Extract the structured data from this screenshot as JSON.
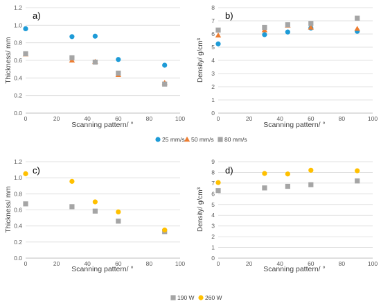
{
  "chart_data": [
    {
      "type": "scatter",
      "panel_label": "a)",
      "xlabel": "Scanning pattern/ °",
      "ylabel": "Thickness/ mm",
      "xlim": [
        0,
        100
      ],
      "ylim": [
        0,
        1.2
      ],
      "xticks": [
        "0",
        "20",
        "40",
        "60",
        "80",
        "100"
      ],
      "yticks": [
        "0.0",
        "0.2",
        "0.4",
        "0.6",
        "0.8",
        "1.0",
        "1.2"
      ],
      "grid": "horizontal",
      "series": [
        {
          "name": "25 mm/s",
          "marker": "circle",
          "color": "#1E9BD7",
          "x": [
            0,
            30,
            45,
            60,
            90
          ],
          "y": [
            0.96,
            0.87,
            0.875,
            0.61,
            0.545
          ]
        },
        {
          "name": "50 mm/s",
          "marker": "triangle",
          "color": "#ED7D31",
          "x": [
            0,
            30,
            45,
            60,
            90
          ],
          "y": [
            0.67,
            0.6,
            0.585,
            0.435,
            0.345
          ]
        },
        {
          "name": "80 mm/s",
          "marker": "square",
          "color": "#A5A5A5",
          "x": [
            0,
            30,
            45,
            60,
            90
          ],
          "y": [
            0.675,
            0.63,
            0.58,
            0.455,
            0.33
          ]
        }
      ]
    },
    {
      "type": "scatter",
      "panel_label": "b)",
      "xlabel": "Scanning pattern/ °",
      "ylabel": "Density/ g/cm³",
      "xlim": [
        0,
        100
      ],
      "ylim": [
        0,
        8
      ],
      "xticks": [
        "0",
        "20",
        "40",
        "60",
        "80",
        "100"
      ],
      "yticks": [
        "0",
        "1",
        "2",
        "3",
        "4",
        "5",
        "6",
        "7",
        "8"
      ],
      "grid": "horizontal",
      "series": [
        {
          "name": "25 mm/s",
          "marker": "circle",
          "color": "#1E9BD7",
          "x": [
            0,
            30,
            45,
            60,
            90
          ],
          "y": [
            5.25,
            5.95,
            6.15,
            6.45,
            6.2
          ]
        },
        {
          "name": "50 mm/s",
          "marker": "triangle",
          "color": "#ED7D31",
          "x": [
            0,
            30,
            45,
            60,
            90
          ],
          "y": [
            5.9,
            6.3,
            6.65,
            6.5,
            6.4
          ]
        },
        {
          "name": "80 mm/s",
          "marker": "square",
          "color": "#A5A5A5",
          "x": [
            0,
            30,
            45,
            60,
            90
          ],
          "y": [
            6.3,
            6.5,
            6.7,
            6.8,
            7.2
          ]
        }
      ]
    },
    {
      "type": "scatter",
      "panel_label": "c)",
      "xlabel": "Scanning pattern/ °",
      "ylabel": "Thickness/ mm",
      "xlim": [
        0,
        100
      ],
      "ylim": [
        0,
        1.2
      ],
      "xticks": [
        "0",
        "20",
        "40",
        "60",
        "80",
        "100"
      ],
      "yticks": [
        "0.0",
        "0.2",
        "0.4",
        "0.6",
        "0.8",
        "1.0",
        "1.2"
      ],
      "grid": "horizontal",
      "series": [
        {
          "name": "190 W",
          "marker": "square",
          "color": "#A5A5A5",
          "x": [
            0,
            30,
            45,
            60,
            90
          ],
          "y": [
            0.675,
            0.64,
            0.585,
            0.46,
            0.33
          ]
        },
        {
          "name": "260 W",
          "marker": "circle",
          "color": "#FFC000",
          "x": [
            0,
            30,
            45,
            60,
            90
          ],
          "y": [
            1.05,
            0.955,
            0.7,
            0.575,
            0.35
          ]
        }
      ]
    },
    {
      "type": "scatter",
      "panel_label": "d)",
      "xlabel": "Scanning pattern/ °",
      "ylabel": "Density/ g/cm³",
      "xlim": [
        0,
        100
      ],
      "ylim": [
        0,
        9
      ],
      "xticks": [
        "0",
        "20",
        "40",
        "60",
        "80",
        "100"
      ],
      "yticks": [
        "0",
        "1",
        "2",
        "3",
        "4",
        "5",
        "6",
        "7",
        "8",
        "9"
      ],
      "grid": "horizontal",
      "series": [
        {
          "name": "190 W",
          "marker": "square",
          "color": "#A5A5A5",
          "x": [
            0,
            30,
            45,
            60,
            90
          ],
          "y": [
            6.3,
            6.55,
            6.7,
            6.85,
            7.2
          ]
        },
        {
          "name": "260 W",
          "marker": "circle",
          "color": "#FFC000",
          "x": [
            0,
            30,
            45,
            60,
            90
          ],
          "y": [
            7.05,
            7.9,
            7.85,
            8.2,
            8.15
          ]
        }
      ]
    }
  ],
  "legends": [
    {
      "entries": [
        {
          "label": "25 mm/s",
          "marker": "circle",
          "color": "#1E9BD7"
        },
        {
          "label": "50 mm/s",
          "marker": "triangle",
          "color": "#ED7D31"
        },
        {
          "label": "80 mm/s",
          "marker": "square",
          "color": "#A5A5A5"
        }
      ]
    },
    {
      "entries": [
        {
          "label": "190 W",
          "marker": "square",
          "color": "#A5A5A5"
        },
        {
          "label": "260 W",
          "marker": "circle",
          "color": "#FFC000"
        }
      ]
    }
  ]
}
